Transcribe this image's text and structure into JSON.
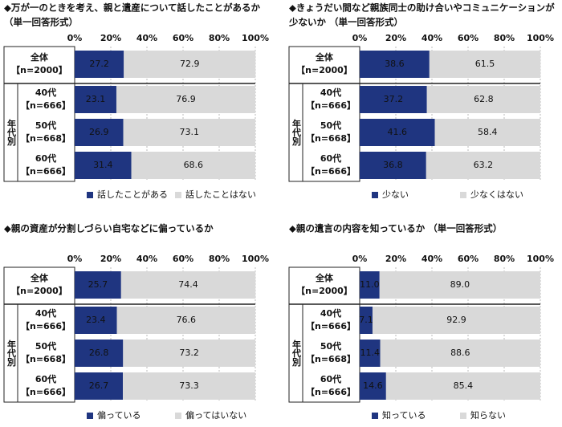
{
  "chart_data": [
    {
      "type": "stacked-bar",
      "title_lines": [
        "◆万が一のときを考え、親と遺産について話したことがあるか",
        "（単一回答形式）"
      ],
      "categories": [
        "全体",
        "40代",
        "50代",
        "60代"
      ],
      "sample_sizes": [
        "【n=2000】",
        "【n=666】",
        "【n=668】",
        "【n=666】"
      ],
      "group_label": "年代別",
      "series": [
        {
          "name": "話したことがある",
          "color": "#1f3580",
          "values": [
            27.2,
            23.1,
            26.9,
            31.4
          ]
        },
        {
          "name": "話したことはない",
          "color": "#d9d9d9",
          "values": [
            72.9,
            76.9,
            73.1,
            68.6
          ]
        }
      ],
      "xlim": [
        0,
        100
      ],
      "xticks": [
        {
          "value": 0,
          "label": "0%"
        },
        {
          "value": 20,
          "label": "20%"
        },
        {
          "value": 40,
          "label": "40%"
        },
        {
          "value": 60,
          "label": "60%"
        },
        {
          "value": 80,
          "label": "80%"
        },
        {
          "value": 100,
          "label": "100%"
        }
      ],
      "grid": true
    },
    {
      "type": "stacked-bar",
      "title_lines": [
        "◆きょうだい間など親族同士の助け合いやコミュニケーションが",
        "少ないか （単一回答形式）"
      ],
      "categories": [
        "全体",
        "40代",
        "50代",
        "60代"
      ],
      "sample_sizes": [
        "【n=2000】",
        "【n=666】",
        "【n=668】",
        "【n=666】"
      ],
      "group_label": "年代別",
      "series": [
        {
          "name": "少ない",
          "color": "#1f3580",
          "values": [
            38.6,
            37.2,
            41.6,
            36.8
          ]
        },
        {
          "name": "少なくはない",
          "color": "#d9d9d9",
          "values": [
            61.5,
            62.8,
            58.4,
            63.2
          ]
        }
      ],
      "xlim": [
        0,
        100
      ],
      "xticks": [
        {
          "value": 0,
          "label": "0%"
        },
        {
          "value": 20,
          "label": "20%"
        },
        {
          "value": 40,
          "label": "40%"
        },
        {
          "value": 60,
          "label": "60%"
        },
        {
          "value": 80,
          "label": "80%"
        },
        {
          "value": 100,
          "label": "100%"
        }
      ],
      "grid": true
    },
    {
      "type": "stacked-bar",
      "title_lines": [
        "◆親の資産が分割しづらい自宅などに偏っているか"
      ],
      "categories": [
        "全体",
        "40代",
        "50代",
        "60代"
      ],
      "sample_sizes": [
        "【n=2000】",
        "【n=666】",
        "【n=668】",
        "【n=666】"
      ],
      "group_label": "年代別",
      "series": [
        {
          "name": "偏っている",
          "color": "#1f3580",
          "values": [
            25.7,
            23.4,
            26.8,
            26.7
          ]
        },
        {
          "name": "偏ってはいない",
          "color": "#d9d9d9",
          "values": [
            74.4,
            76.6,
            73.2,
            73.3
          ]
        }
      ],
      "xlim": [
        0,
        100
      ],
      "xticks": [
        {
          "value": 0,
          "label": "0%"
        },
        {
          "value": 20,
          "label": "20%"
        },
        {
          "value": 40,
          "label": "40%"
        },
        {
          "value": 60,
          "label": "60%"
        },
        {
          "value": 80,
          "label": "80%"
        },
        {
          "value": 100,
          "label": "100%"
        }
      ],
      "grid": true
    },
    {
      "type": "stacked-bar",
      "title_lines": [
        "◆親の遺言の内容を知っているか （単一回答形式）"
      ],
      "categories": [
        "全体",
        "40代",
        "50代",
        "60代"
      ],
      "sample_sizes": [
        "【n=2000】",
        "【n=666】",
        "【n=668】",
        "【n=666】"
      ],
      "group_label": "年代別",
      "series": [
        {
          "name": "知っている",
          "color": "#1f3580",
          "values": [
            11.0,
            7.1,
            11.4,
            14.6
          ],
          "value_labels": [
            "11.0",
            "7.1",
            "11.4",
            "14.6"
          ]
        },
        {
          "name": "知らない",
          "color": "#d9d9d9",
          "values": [
            89.0,
            92.9,
            88.6,
            85.4
          ],
          "value_labels": [
            "89.0",
            "92.9",
            "88.6",
            "85.4"
          ]
        }
      ],
      "xlim": [
        0,
        100
      ],
      "xticks": [
        {
          "value": 0,
          "label": "0%"
        },
        {
          "value": 20,
          "label": "20%"
        },
        {
          "value": 40,
          "label": "40%"
        },
        {
          "value": 60,
          "label": "60%"
        },
        {
          "value": 80,
          "label": "80%"
        },
        {
          "value": 100,
          "label": "100%"
        }
      ],
      "grid": true
    }
  ]
}
